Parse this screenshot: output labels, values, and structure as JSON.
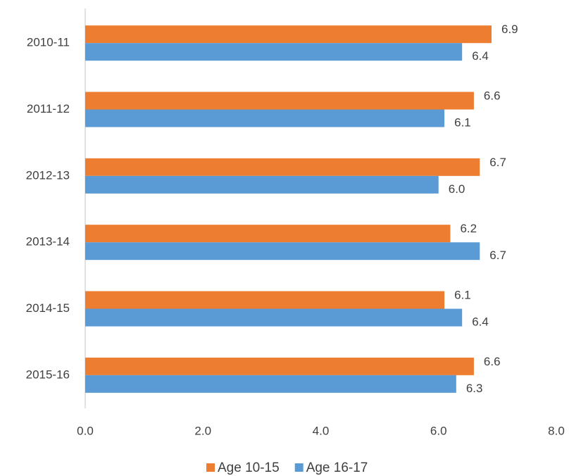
{
  "chart_data": {
    "type": "bar",
    "orientation": "horizontal",
    "categories": [
      "2010-11",
      "2011-12",
      "2012-13",
      "2013-14",
      "2014-15",
      "2015-16"
    ],
    "series": [
      {
        "name": "Age 10-15",
        "color": "#ed7d31",
        "values": [
          6.9,
          6.6,
          6.7,
          6.2,
          6.1,
          6.6
        ],
        "value_labels": [
          "6.9",
          "6.6",
          "6.7",
          "6.2",
          "6.1",
          "6.6"
        ]
      },
      {
        "name": "Age 16-17",
        "color": "#5b9bd5",
        "values": [
          6.4,
          6.1,
          6.0,
          6.7,
          6.4,
          6.3
        ],
        "value_labels": [
          "6.4",
          "6.1",
          "6.0",
          "6.7",
          "6.4",
          "6.3"
        ]
      }
    ],
    "xlim": [
      0,
      8
    ],
    "xticks": [
      {
        "value": 0,
        "label": "0.0"
      },
      {
        "value": 2,
        "label": "2.0"
      },
      {
        "value": 4,
        "label": "4.0"
      },
      {
        "value": 6,
        "label": "6.0"
      },
      {
        "value": 8,
        "label": "8.0"
      }
    ],
    "grid": false,
    "legend": "bottom"
  }
}
